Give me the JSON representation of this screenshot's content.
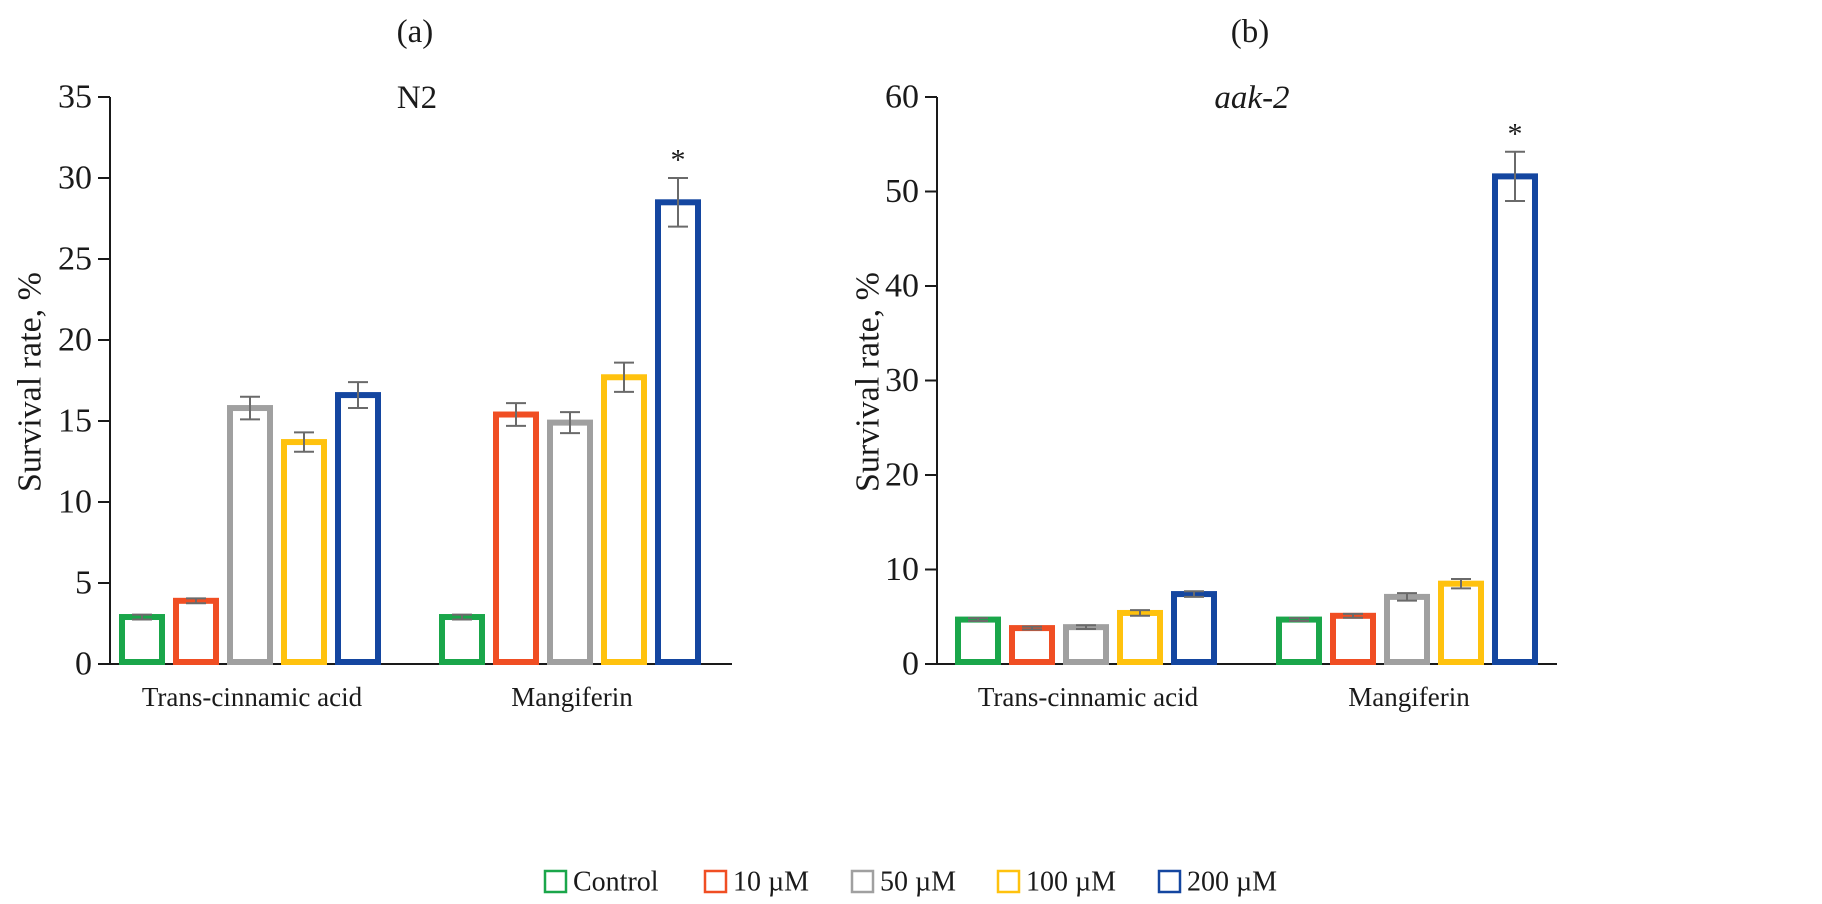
{
  "chart_data": [
    {
      "panel_label": "(a)",
      "type": "bar",
      "title": "N2",
      "title_style": "normal",
      "ylabel": "Survival rate, %",
      "ylim": [
        0,
        35
      ],
      "yticks": [
        0,
        5,
        10,
        15,
        20,
        25,
        30,
        35
      ],
      "categories": [
        "Trans-cinnamic acid",
        "Mangiferin"
      ],
      "series": [
        {
          "name": "Control",
          "color": "#1aa64a",
          "values": [
            2.9,
            2.9
          ],
          "errors": [
            0.15,
            0.15
          ],
          "significant": [
            false,
            false
          ]
        },
        {
          "name": "10 µM",
          "color": "#f04e23",
          "values": [
            3.9,
            15.4
          ],
          "errors": [
            0.15,
            0.7
          ],
          "significant": [
            false,
            false
          ]
        },
        {
          "name": "50 µM",
          "color": "#a0a0a0",
          "values": [
            15.8,
            14.9
          ],
          "errors": [
            0.7,
            0.65
          ],
          "significant": [
            false,
            false
          ]
        },
        {
          "name": "100 µM",
          "color": "#ffc20e",
          "values": [
            13.7,
            17.7
          ],
          "errors": [
            0.6,
            0.9
          ],
          "significant": [
            false,
            false
          ]
        },
        {
          "name": "200 µM",
          "color": "#1446a0",
          "values": [
            16.6,
            28.5
          ],
          "errors": [
            0.8,
            1.5
          ],
          "significant": [
            false,
            true
          ]
        }
      ],
      "significance_marker": "*"
    },
    {
      "panel_label": "(b)",
      "type": "bar",
      "title": "aak-2",
      "title_style": "italic",
      "ylabel": "Survival rate, %",
      "ylim": [
        0,
        60
      ],
      "yticks": [
        0,
        10,
        20,
        30,
        40,
        50,
        60
      ],
      "categories": [
        "Trans-cinnamic acid",
        "Mangiferin"
      ],
      "series": [
        {
          "name": "Control",
          "color": "#1aa64a",
          "values": [
            4.7,
            4.7
          ],
          "errors": [
            0.15,
            0.15
          ],
          "significant": [
            false,
            false
          ]
        },
        {
          "name": "10 µM",
          "color": "#f04e23",
          "values": [
            3.8,
            5.1
          ],
          "errors": [
            0.15,
            0.2
          ],
          "significant": [
            false,
            false
          ]
        },
        {
          "name": "50 µM",
          "color": "#a0a0a0",
          "values": [
            3.9,
            7.1
          ],
          "errors": [
            0.2,
            0.4
          ],
          "significant": [
            false,
            false
          ]
        },
        {
          "name": "100 µM",
          "color": "#ffc20e",
          "values": [
            5.4,
            8.5
          ],
          "errors": [
            0.3,
            0.5
          ],
          "significant": [
            false,
            false
          ]
        },
        {
          "name": "200 µM",
          "color": "#1446a0",
          "values": [
            7.4,
            51.6
          ],
          "errors": [
            0.3,
            2.6
          ],
          "significant": [
            false,
            true
          ]
        }
      ],
      "significance_marker": "*"
    }
  ],
  "legend": {
    "placement": "bottom-center",
    "items": [
      {
        "label": "Control",
        "color": "#1aa64a"
      },
      {
        "label": "10 µM",
        "color": "#f04e23"
      },
      {
        "label": "50 µM",
        "color": "#a0a0a0"
      },
      {
        "label": "100 µM",
        "color": "#ffc20e"
      },
      {
        "label": "200 µM",
        "color": "#1446a0"
      }
    ]
  },
  "colors": {
    "axis": "#1a1a1a",
    "error_bar": "#6a6a6a",
    "bar_fill": "#ffffff"
  }
}
